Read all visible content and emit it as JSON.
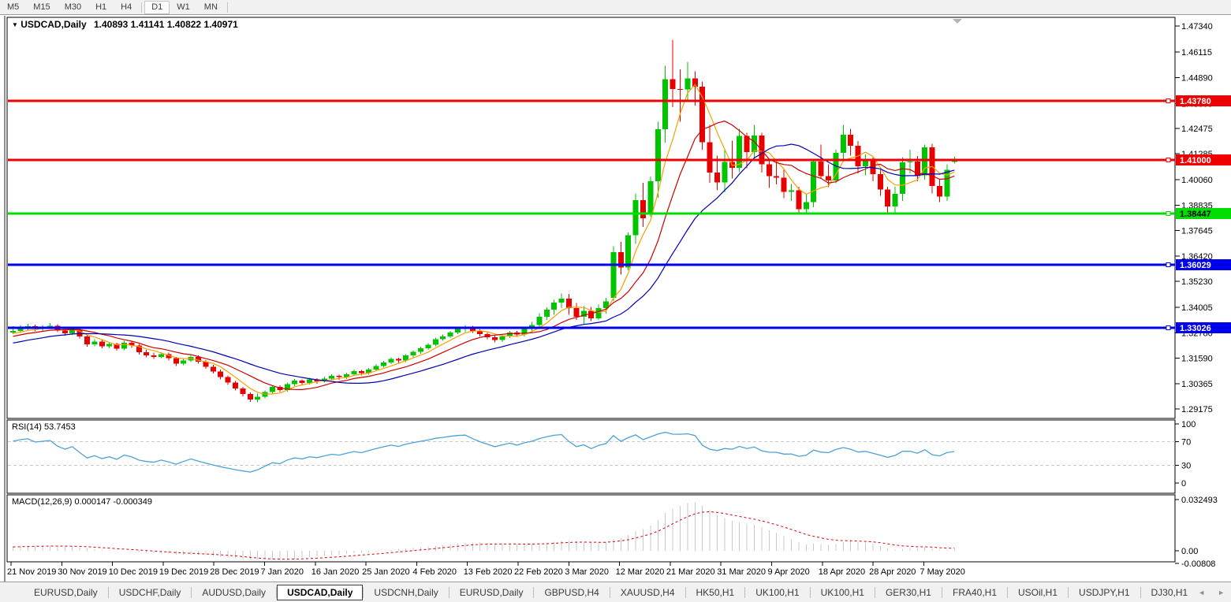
{
  "toolbar": {
    "timeframes": [
      "M5",
      "M15",
      "M30",
      "H1",
      "H4",
      "D1",
      "W1",
      "MN"
    ],
    "active": "D1",
    "group_breaks_after": [
      "H4",
      "MN"
    ]
  },
  "chart": {
    "title_symbol": "USDCAD,Daily",
    "title_ohlc": "1.40893 1.41141 1.40822 1.40971"
  },
  "icons": {
    "symbol_dropdown": "▼",
    "tabs_prev": "◄",
    "tabs_next": "►"
  },
  "chart_data": {
    "type": "candlestick",
    "symbol": "USDCAD",
    "timeframe": "Daily",
    "current_ohlc": {
      "open": 1.40893,
      "high": 1.41141,
      "low": 1.40822,
      "close": 1.40971
    },
    "colors": {
      "bull": "#00c400",
      "bear": "#e80000",
      "ma_fast": "#f7a000",
      "ma_mid": "#cc0000",
      "ma_slow": "#0000b4",
      "rsi_line": "#4ba1d9",
      "level_dash": "#c9c9c9",
      "macd_histogram": "#c9c9c9",
      "macd_signal": "#dd0000",
      "shift_marker": "#b4b4b4"
    },
    "y_axis": {
      "ticks": [
        "1.47340",
        "1.46115",
        "1.44890",
        "1.43665",
        "1.42475",
        "1.41285",
        "1.40060",
        "1.38835",
        "1.37645",
        "1.36420",
        "1.35230",
        "1.34005",
        "1.32780",
        "1.31590",
        "1.30365",
        "1.29175"
      ],
      "visible_range": [
        1.2873,
        1.4775
      ]
    },
    "x_axis": {
      "labels": [
        "21 Nov 2019",
        "30 Nov 2019",
        "10 Dec 2019",
        "19 Dec 2019",
        "28 Dec 2019",
        "7 Jan 2020",
        "16 Jan 2020",
        "25 Jan 2020",
        "4 Feb 2020",
        "13 Feb 2020",
        "22 Feb 2020",
        "3 Mar 2020",
        "12 Mar 2020",
        "21 Mar 2020",
        "31 Mar 2020",
        "9 Apr 2020",
        "18 Apr 2020",
        "28 Apr 2020",
        "7 May 2020"
      ]
    },
    "horizontal_lines": [
      {
        "value": 1.4378,
        "label": "1.43780",
        "color": "#ee0000",
        "text_color": "#ffffff"
      },
      {
        "value": 1.41,
        "label": "1.41000",
        "color": "#ee0000",
        "text_color": "#ffffff"
      },
      {
        "value": 1.38447,
        "label": "1.38447",
        "color": "#00dd00",
        "text_color": "#000000"
      },
      {
        "value": 1.36029,
        "label": "1.36029",
        "color": "#0000ee",
        "text_color": "#ffffff"
      },
      {
        "value": 1.33026,
        "label": "1.33026",
        "color": "#0000ee",
        "text_color": "#ffffff"
      }
    ],
    "moving_averages": [
      {
        "period": 5,
        "color": "#f7a000"
      },
      {
        "period": 10,
        "color": "#cc0000"
      },
      {
        "period": 20,
        "color": "#0000b4"
      }
    ],
    "rsi": {
      "label": "RSI(14) 53.7453",
      "period": 14,
      "axis_ticks": [
        100,
        70,
        30,
        0
      ],
      "dashed_levels": [
        70,
        30
      ]
    },
    "macd": {
      "label": "MACD(12,26,9) 0.000147 -0.000349",
      "fast": 12,
      "slow": 26,
      "signal": 9,
      "axis_ticks": [
        {
          "label": "0.032493",
          "value": 0.032493
        },
        {
          "label": "0.00",
          "value": 0
        },
        {
          "label": "-0.00808",
          "value": -0.00808
        }
      ]
    },
    "pre_window_closes": [
      1.3225,
      1.324,
      1.3232,
      1.3218,
      1.3205,
      1.3196,
      1.321,
      1.3228,
      1.3245,
      1.3262,
      1.328,
      1.3295,
      1.331,
      1.3324,
      1.3305,
      1.3288,
      1.327,
      1.3252,
      1.3235,
      1.3218,
      1.32,
      1.3185,
      1.3168,
      1.3152,
      1.3138,
      1.3125,
      1.311,
      1.3095,
      1.3082,
      1.307,
      1.3062,
      1.3075,
      1.309,
      1.3105,
      1.3118,
      1.3132,
      1.3125,
      1.314,
      1.3155,
      1.3148,
      1.3162,
      1.3175,
      1.3168,
      1.3182,
      1.3195,
      1.3188,
      1.3202,
      1.3215,
      1.3208,
      1.3222,
      1.3235,
      1.3228,
      1.3242,
      1.3255,
      1.3248,
      1.3262,
      1.3275,
      1.3268,
      1.328,
      1.3272
    ],
    "candles": [
      [
        1.328,
        1.331,
        1.3272,
        1.3287
      ],
      [
        1.3287,
        1.3315,
        1.3278,
        1.3301
      ],
      [
        1.3301,
        1.3322,
        1.329,
        1.331
      ],
      [
        1.331,
        1.3318,
        1.3285,
        1.3298
      ],
      [
        1.3298,
        1.3316,
        1.3288,
        1.3305
      ],
      [
        1.3305,
        1.3324,
        1.3296,
        1.3312
      ],
      [
        1.3312,
        1.332,
        1.3282,
        1.329
      ],
      [
        1.329,
        1.33,
        1.3265,
        1.3276
      ],
      [
        1.3276,
        1.3302,
        1.3268,
        1.3294
      ],
      [
        1.3294,
        1.3302,
        1.3252,
        1.3262
      ],
      [
        1.3262,
        1.327,
        1.3212,
        1.3224
      ],
      [
        1.3224,
        1.3248,
        1.3214,
        1.3238
      ],
      [
        1.3238,
        1.3244,
        1.3205,
        1.3215
      ],
      [
        1.3215,
        1.3235,
        1.3206,
        1.3226
      ],
      [
        1.3226,
        1.3232,
        1.3195,
        1.3204
      ],
      [
        1.3204,
        1.324,
        1.3196,
        1.3232
      ],
      [
        1.3232,
        1.324,
        1.3208,
        1.3218
      ],
      [
        1.3218,
        1.3226,
        1.3176,
        1.3186
      ],
      [
        1.3186,
        1.3198,
        1.3162,
        1.3172
      ],
      [
        1.3172,
        1.3184,
        1.3155,
        1.3164
      ],
      [
        1.3164,
        1.3186,
        1.3158,
        1.3177
      ],
      [
        1.3177,
        1.3184,
        1.3148,
        1.3158
      ],
      [
        1.3158,
        1.3165,
        1.3122,
        1.3132
      ],
      [
        1.3132,
        1.3155,
        1.3125,
        1.3148
      ],
      [
        1.3148,
        1.3172,
        1.314,
        1.3165
      ],
      [
        1.3165,
        1.3172,
        1.3132,
        1.3142
      ],
      [
        1.3142,
        1.315,
        1.3108,
        1.3118
      ],
      [
        1.3118,
        1.3126,
        1.3085,
        1.3095
      ],
      [
        1.3095,
        1.3104,
        1.3058,
        1.3068
      ],
      [
        1.3068,
        1.3076,
        1.3032,
        1.3042
      ],
      [
        1.3042,
        1.305,
        1.3005,
        1.3015
      ],
      [
        1.3015,
        1.3022,
        1.2978,
        1.2988
      ],
      [
        1.2988,
        1.2996,
        1.2952,
        1.2962
      ],
      [
        1.2962,
        1.299,
        1.2949,
        1.2975
      ],
      [
        1.2975,
        1.3005,
        1.2968,
        1.2998
      ],
      [
        1.2998,
        1.303,
        1.299,
        1.3022
      ],
      [
        1.3022,
        1.303,
        1.2998,
        1.3008
      ],
      [
        1.3008,
        1.3042,
        1.3,
        1.3035
      ],
      [
        1.3035,
        1.306,
        1.3026,
        1.3052
      ],
      [
        1.3052,
        1.3058,
        1.303,
        1.3041
      ],
      [
        1.3041,
        1.3065,
        1.3034,
        1.3058
      ],
      [
        1.3058,
        1.3064,
        1.3038,
        1.3049
      ],
      [
        1.3049,
        1.307,
        1.3042,
        1.3062
      ],
      [
        1.3062,
        1.3082,
        1.3054,
        1.3075
      ],
      [
        1.3075,
        1.3081,
        1.3056,
        1.3068
      ],
      [
        1.3068,
        1.309,
        1.306,
        1.3082
      ],
      [
        1.3082,
        1.3104,
        1.3074,
        1.3096
      ],
      [
        1.3096,
        1.3102,
        1.3076,
        1.3088
      ],
      [
        1.3088,
        1.3112,
        1.308,
        1.3105
      ],
      [
        1.3105,
        1.313,
        1.3098,
        1.3122
      ],
      [
        1.3122,
        1.3146,
        1.3114,
        1.3138
      ],
      [
        1.3138,
        1.3162,
        1.313,
        1.3155
      ],
      [
        1.3155,
        1.3161,
        1.3136,
        1.3147
      ],
      [
        1.3147,
        1.3178,
        1.314,
        1.3171
      ],
      [
        1.3171,
        1.3196,
        1.3163,
        1.3188
      ],
      [
        1.3188,
        1.3212,
        1.318,
        1.3205
      ],
      [
        1.3205,
        1.323,
        1.3198,
        1.3222
      ],
      [
        1.3222,
        1.3255,
        1.3215,
        1.3248
      ],
      [
        1.3248,
        1.327,
        1.324,
        1.3262
      ],
      [
        1.3262,
        1.3288,
        1.3254,
        1.3281
      ],
      [
        1.3281,
        1.3304,
        1.3272,
        1.3296
      ],
      [
        1.3296,
        1.3315,
        1.3282,
        1.3305
      ],
      [
        1.3305,
        1.3312,
        1.3278,
        1.3288
      ],
      [
        1.3288,
        1.3295,
        1.3262,
        1.3272
      ],
      [
        1.3272,
        1.328,
        1.3248,
        1.3258
      ],
      [
        1.3258,
        1.3266,
        1.3234,
        1.3244
      ],
      [
        1.3244,
        1.3268,
        1.3236,
        1.3262
      ],
      [
        1.3262,
        1.3288,
        1.3254,
        1.3281
      ],
      [
        1.3281,
        1.3288,
        1.326,
        1.327
      ],
      [
        1.327,
        1.3302,
        1.3262,
        1.3296
      ],
      [
        1.3296,
        1.333,
        1.328,
        1.3315
      ],
      [
        1.3315,
        1.3372,
        1.3305,
        1.3355
      ],
      [
        1.3355,
        1.34,
        1.334,
        1.3388
      ],
      [
        1.3388,
        1.3435,
        1.3365,
        1.3422
      ],
      [
        1.3422,
        1.3465,
        1.3395,
        1.344
      ],
      [
        1.344,
        1.3464,
        1.3365,
        1.3396
      ],
      [
        1.3396,
        1.342,
        1.334,
        1.3355
      ],
      [
        1.3355,
        1.3405,
        1.3322,
        1.3382
      ],
      [
        1.3382,
        1.3402,
        1.3335,
        1.3348
      ],
      [
        1.3348,
        1.3412,
        1.334,
        1.3395
      ],
      [
        1.3395,
        1.3445,
        1.337,
        1.3428
      ],
      [
        1.3445,
        1.369,
        1.343,
        1.3662
      ],
      [
        1.3662,
        1.371,
        1.3555,
        1.3588
      ],
      [
        1.3588,
        1.3755,
        1.3575,
        1.3742
      ],
      [
        1.3742,
        1.394,
        1.37,
        1.3908
      ],
      [
        1.3908,
        1.399,
        1.378,
        1.3822
      ],
      [
        1.385,
        1.402,
        1.383,
        1.3998
      ],
      [
        1.3998,
        1.428,
        1.392,
        1.4244
      ],
      [
        1.4244,
        1.4545,
        1.418,
        1.4482
      ],
      [
        1.4482,
        1.4669,
        1.4349,
        1.4435
      ],
      [
        1.4435,
        1.4528,
        1.428,
        1.4433
      ],
      [
        1.4433,
        1.4564,
        1.4385,
        1.4486
      ],
      [
        1.4486,
        1.452,
        1.4356,
        1.4446
      ],
      [
        1.4446,
        1.447,
        1.4148,
        1.4182
      ],
      [
        1.4182,
        1.4265,
        1.399,
        1.4038
      ],
      [
        1.4038,
        1.412,
        1.3955,
        1.3992
      ],
      [
        1.3992,
        1.4145,
        1.3945,
        1.4089
      ],
      [
        1.4089,
        1.419,
        1.401,
        1.4062
      ],
      [
        1.4062,
        1.4246,
        1.404,
        1.4212
      ],
      [
        1.4212,
        1.4228,
        1.406,
        1.4136
      ],
      [
        1.4136,
        1.4264,
        1.4108,
        1.4215
      ],
      [
        1.4215,
        1.4228,
        1.4038,
        1.4078
      ],
      [
        1.4078,
        1.4098,
        1.3965,
        1.4022
      ],
      [
        1.4022,
        1.4092,
        1.3982,
        1.4015
      ],
      [
        1.4015,
        1.4052,
        1.3918,
        1.3948
      ],
      [
        1.3948,
        1.3985,
        1.3905,
        1.3955
      ],
      [
        1.3955,
        1.3972,
        1.3848,
        1.3865
      ],
      [
        1.3865,
        1.3935,
        1.385,
        1.3898
      ],
      [
        1.3898,
        1.4098,
        1.3875,
        1.4092
      ],
      [
        1.4092,
        1.4172,
        1.4008,
        1.4022
      ],
      [
        1.4022,
        1.4078,
        1.397,
        1.4001
      ],
      [
        1.4001,
        1.4148,
        1.3988,
        1.4132
      ],
      [
        1.4132,
        1.4265,
        1.4105,
        1.4218
      ],
      [
        1.4218,
        1.4246,
        1.412,
        1.4165
      ],
      [
        1.4165,
        1.4188,
        1.4035,
        1.4068
      ],
      [
        1.4068,
        1.4125,
        1.4025,
        1.4095
      ],
      [
        1.4095,
        1.411,
        1.3998,
        1.4032
      ],
      [
        1.4032,
        1.4052,
        1.3928,
        1.3958
      ],
      [
        1.3958,
        1.3972,
        1.385,
        1.3878
      ],
      [
        1.3878,
        1.3972,
        1.3845,
        1.3938
      ],
      [
        1.3938,
        1.4112,
        1.3905,
        1.4088
      ],
      [
        1.4088,
        1.4148,
        1.4035,
        1.4092
      ],
      [
        1.4092,
        1.4118,
        1.3998,
        1.4025
      ],
      [
        1.4025,
        1.4172,
        1.4005,
        1.4158
      ],
      [
        1.4158,
        1.4175,
        1.394,
        1.3975
      ],
      [
        1.3975,
        1.4008,
        1.3898,
        1.3925
      ],
      [
        1.3925,
        1.4078,
        1.3905,
        1.4052
      ],
      [
        1.40893,
        1.41141,
        1.40822,
        1.40971
      ]
    ]
  },
  "tabs": {
    "items": [
      "EURUSD,Daily",
      "USDCHF,Daily",
      "AUDUSD,Daily",
      "USDCAD,Daily",
      "USDCNH,Daily",
      "EURUSD,Daily",
      "GBPUSD,H4",
      "XAUUSD,H4",
      "HK50,H1",
      "UK100,H1",
      "UK100,H1",
      "GER30,H1",
      "FRA40,H1",
      "USOil,H1",
      "USDJPY,H1",
      "DJ30,H1"
    ],
    "active_index": 3
  }
}
